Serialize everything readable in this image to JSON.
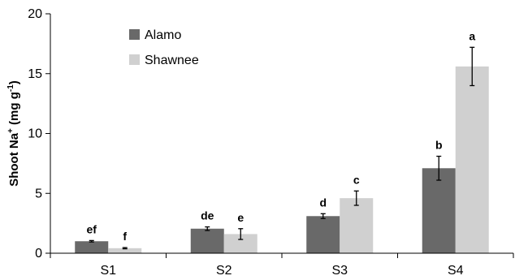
{
  "chart_data": {
    "type": "bar",
    "categories": [
      "S1",
      "S2",
      "S3",
      "S4"
    ],
    "ylabel": {
      "base": "Shoot Na",
      "sup_ion": "+",
      "unit_open": " (mg g",
      "sup_unit": "-1",
      "unit_close": ")"
    },
    "ylim": [
      0,
      20
    ],
    "yticks": [
      0,
      5,
      10,
      15,
      20
    ],
    "legend_position": "top-left",
    "series": [
      {
        "name": "Alamo",
        "color": "#696969",
        "values": [
          1.0,
          2.05,
          3.1,
          7.1
        ],
        "errors": [
          0.06,
          0.15,
          0.2,
          1.0
        ],
        "labels": [
          "ef",
          "de",
          "d",
          "b"
        ]
      },
      {
        "name": "Shawnee",
        "color": "#d0d0d0",
        "values": [
          0.42,
          1.6,
          4.6,
          15.6
        ],
        "errors": [
          0.05,
          0.45,
          0.6,
          1.6
        ],
        "labels": [
          "f",
          "e",
          "c",
          "a"
        ]
      }
    ]
  }
}
